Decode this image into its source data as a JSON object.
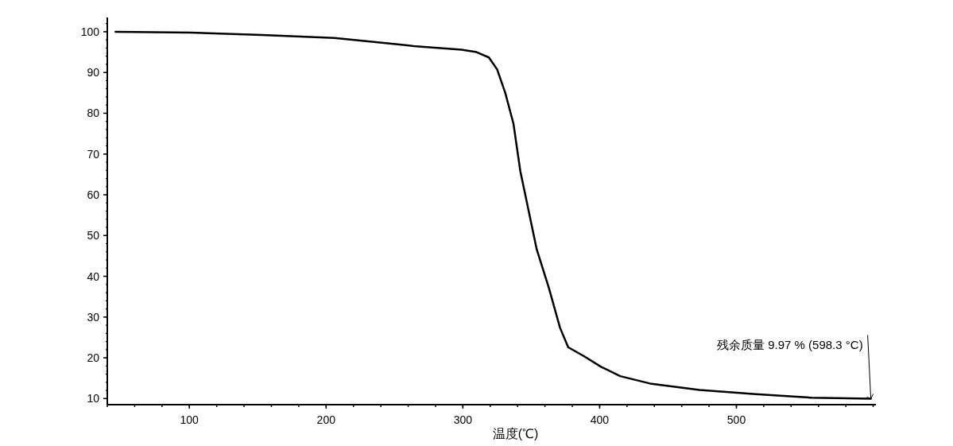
{
  "chart_data": {
    "type": "line",
    "xlabel": "温度(℃)",
    "x": [
      46,
      101,
      153,
      206,
      235,
      264,
      299,
      310,
      319,
      325,
      331,
      337,
      342,
      348,
      354,
      363,
      371,
      377,
      389,
      401,
      415,
      438,
      473,
      514,
      555,
      598.3
    ],
    "series": [
      {
        "color": "#000000",
        "values": [
          100,
          99.8,
          99.2,
          98.5,
          97.5,
          96.5,
          95.6,
          95,
          93.7,
          90.8,
          85,
          77.4,
          65.8,
          56.2,
          46.6,
          37,
          27.4,
          22.6,
          20.3,
          17.8,
          15.5,
          13.6,
          12.1,
          11.1,
          10.2,
          9.97
        ]
      }
    ],
    "xlim": [
      40,
      602
    ],
    "ylim": [
      8.5,
      103.5
    ],
    "xticks": [
      100,
      200,
      300,
      400,
      500
    ],
    "yticks": [
      10,
      20,
      30,
      40,
      50,
      60,
      70,
      80,
      90,
      100
    ],
    "annotations": [
      {
        "text": "残余质量 9.97 % (598.3 °C)",
        "x": 598.3,
        "y": 9.97
      }
    ],
    "grid": false,
    "marker": "none",
    "line_style": "solid"
  }
}
